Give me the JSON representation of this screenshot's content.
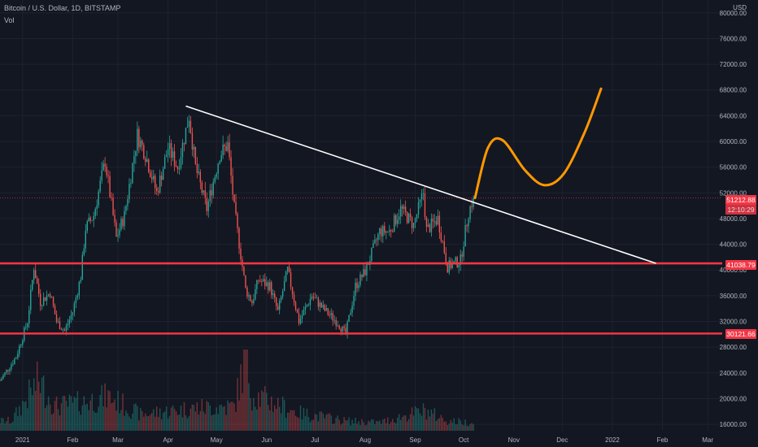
{
  "header": {
    "symbol_title": "Bitcoin / U.S. Dollar, 1D, BITSTAMP",
    "volume_label": "Vol"
  },
  "price_axis": {
    "currency": "USD",
    "ticks": [
      "80000.00",
      "76000.00",
      "72000.00",
      "68000.00",
      "64000.00",
      "60000.00",
      "56000.00",
      "52000.00",
      "48000.00",
      "44000.00",
      "40000.00",
      "36000.00",
      "32000.00",
      "28000.00",
      "24000.00",
      "20000.00",
      "16000.00"
    ]
  },
  "time_axis": {
    "ticks": [
      "2021",
      "Feb",
      "Mar",
      "Apr",
      "May",
      "Jun",
      "Jul",
      "Aug",
      "Sep",
      "Oct",
      "Nov",
      "Dec",
      "2022",
      "Feb",
      "Mar"
    ]
  },
  "price_tags": {
    "current_price": "51212.88",
    "countdown": "12:10:29",
    "upper_level": "41038.79",
    "lower_level": "30121.66"
  },
  "colors": {
    "background": "#131722",
    "bullish": "#26a69a",
    "bearish": "#ef5350",
    "level_line": "#f23645",
    "trendline": "#ffffff",
    "projection": "#ff9800",
    "current_price_tag": "#f23645"
  },
  "chart_data": {
    "type": "candlestick",
    "symbol": "BTCUSD",
    "interval": "1D",
    "y_range": [
      15000,
      82000
    ],
    "x_range": [
      "2020-12-18",
      "2022-03-10"
    ],
    "price_series": [
      [
        "2020-12-18",
        22800
      ],
      [
        "2020-12-28",
        26500
      ],
      [
        "2021-01-04",
        32000
      ],
      [
        "2021-01-08",
        40500
      ],
      [
        "2021-01-12",
        35000
      ],
      [
        "2021-01-18",
        36500
      ],
      [
        "2021-01-22",
        32000
      ],
      [
        "2021-01-27",
        30500
      ],
      [
        "2021-02-01",
        33500
      ],
      [
        "2021-02-06",
        39000
      ],
      [
        "2021-02-09",
        46500
      ],
      [
        "2021-02-14",
        48500
      ],
      [
        "2021-02-21",
        57000
      ],
      [
        "2021-02-28",
        45000
      ],
      [
        "2021-03-05",
        48500
      ],
      [
        "2021-03-13",
        61000
      ],
      [
        "2021-03-18",
        58000
      ],
      [
        "2021-03-25",
        52000
      ],
      [
        "2021-04-01",
        59000
      ],
      [
        "2021-04-07",
        56000
      ],
      [
        "2021-04-14",
        64000
      ],
      [
        "2021-04-18",
        56000
      ],
      [
        "2021-04-25",
        49500
      ],
      [
        "2021-05-03",
        58000
      ],
      [
        "2021-05-08",
        59500
      ],
      [
        "2021-05-12",
        49500
      ],
      [
        "2021-05-19",
        37000
      ],
      [
        "2021-05-23",
        35000
      ],
      [
        "2021-05-27",
        38500
      ],
      [
        "2021-06-03",
        37500
      ],
      [
        "2021-06-08",
        33500
      ],
      [
        "2021-06-14",
        40000
      ],
      [
        "2021-06-21",
        32000
      ],
      [
        "2021-06-29",
        36000
      ],
      [
        "2021-07-06",
        34000
      ],
      [
        "2021-07-15",
        31800
      ],
      [
        "2021-07-20",
        30000
      ],
      [
        "2021-07-26",
        37500
      ],
      [
        "2021-08-01",
        39800
      ],
      [
        "2021-08-10",
        46000
      ],
      [
        "2021-08-16",
        46000
      ],
      [
        "2021-08-23",
        49500
      ],
      [
        "2021-08-31",
        47000
      ],
      [
        "2021-09-06",
        52000
      ],
      [
        "2021-09-08",
        46200
      ],
      [
        "2021-09-15",
        48000
      ],
      [
        "2021-09-21",
        40500
      ],
      [
        "2021-09-29",
        41500
      ],
      [
        "2021-10-04",
        49000
      ],
      [
        "2021-10-07",
        51212.88
      ]
    ],
    "volume_max": 1,
    "volume_series": [
      [
        "2020-12-25",
        0.12
      ],
      [
        "2021-01-11",
        0.62
      ],
      [
        "2021-01-21",
        0.3
      ],
      [
        "2021-02-08",
        0.35
      ],
      [
        "2021-02-23",
        0.42
      ],
      [
        "2021-03-15",
        0.2
      ],
      [
        "2021-04-18",
        0.28
      ],
      [
        "2021-05-12",
        0.3
      ],
      [
        "2021-05-19",
        0.9
      ],
      [
        "2021-05-23",
        0.45
      ],
      [
        "2021-06-21",
        0.22
      ],
      [
        "2021-07-20",
        0.12
      ],
      [
        "2021-08-10",
        0.1
      ],
      [
        "2021-09-07",
        0.25
      ],
      [
        "2021-09-21",
        0.12
      ],
      [
        "2021-10-06",
        0.1
      ]
    ],
    "horizontal_levels": [
      41038.79,
      30121.66
    ],
    "trendline": [
      [
        "2021-04-12",
        65500
      ],
      [
        "2022-01-28",
        41038.79
      ]
    ],
    "projection_path": [
      [
        "2021-10-08",
        51212.88
      ],
      [
        "2021-10-16",
        59000
      ],
      [
        "2021-10-25",
        60200
      ],
      [
        "2021-11-08",
        55500
      ],
      [
        "2021-11-20",
        53200
      ],
      [
        "2021-12-02",
        55000
      ],
      [
        "2021-12-15",
        61500
      ],
      [
        "2021-12-25",
        68200
      ]
    ]
  }
}
